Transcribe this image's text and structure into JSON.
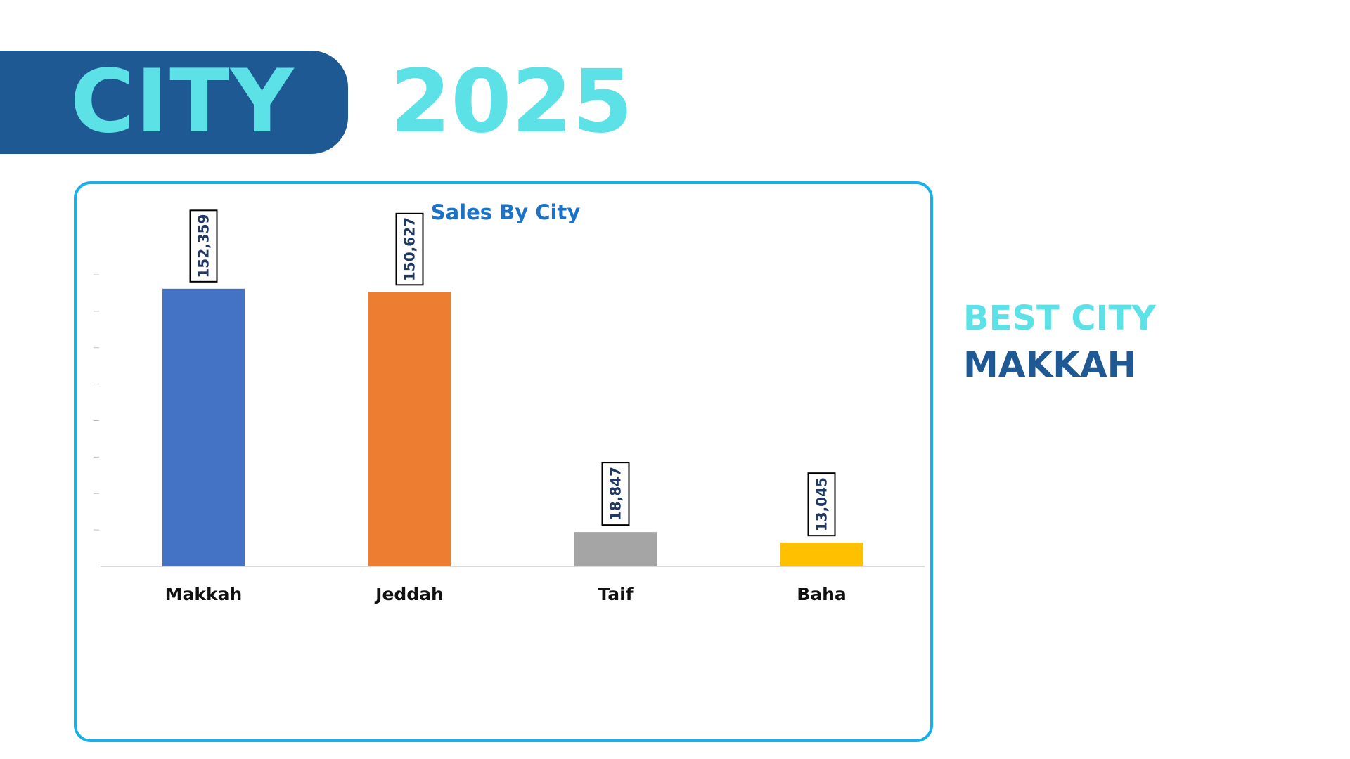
{
  "header": {
    "title": "CITY",
    "year": "2025"
  },
  "summary": {
    "label": "BEST CITY",
    "value": "MAKKAH"
  },
  "colors": {
    "banner": "#1f5994",
    "accent": "#5ce1e6",
    "panel_border": "#17b0ea",
    "title": "#1a73c8"
  },
  "chart_data": {
    "type": "bar",
    "title": "Sales By City",
    "categories": [
      "Makkah",
      "Jeddah",
      "Taif",
      "Baha"
    ],
    "values": [
      152359,
      150627,
      18847,
      13045
    ],
    "value_labels": [
      "152,359",
      "150,627",
      "18,847",
      "13,045"
    ],
    "bar_colors": [
      "#4472c4",
      "#ed7d31",
      "#a5a5a5",
      "#ffc000"
    ],
    "xlabel": "",
    "ylabel": "",
    "ylim": [
      0,
      160000
    ],
    "grid": false,
    "legend": "none",
    "data_label_orientation": "vertical"
  }
}
